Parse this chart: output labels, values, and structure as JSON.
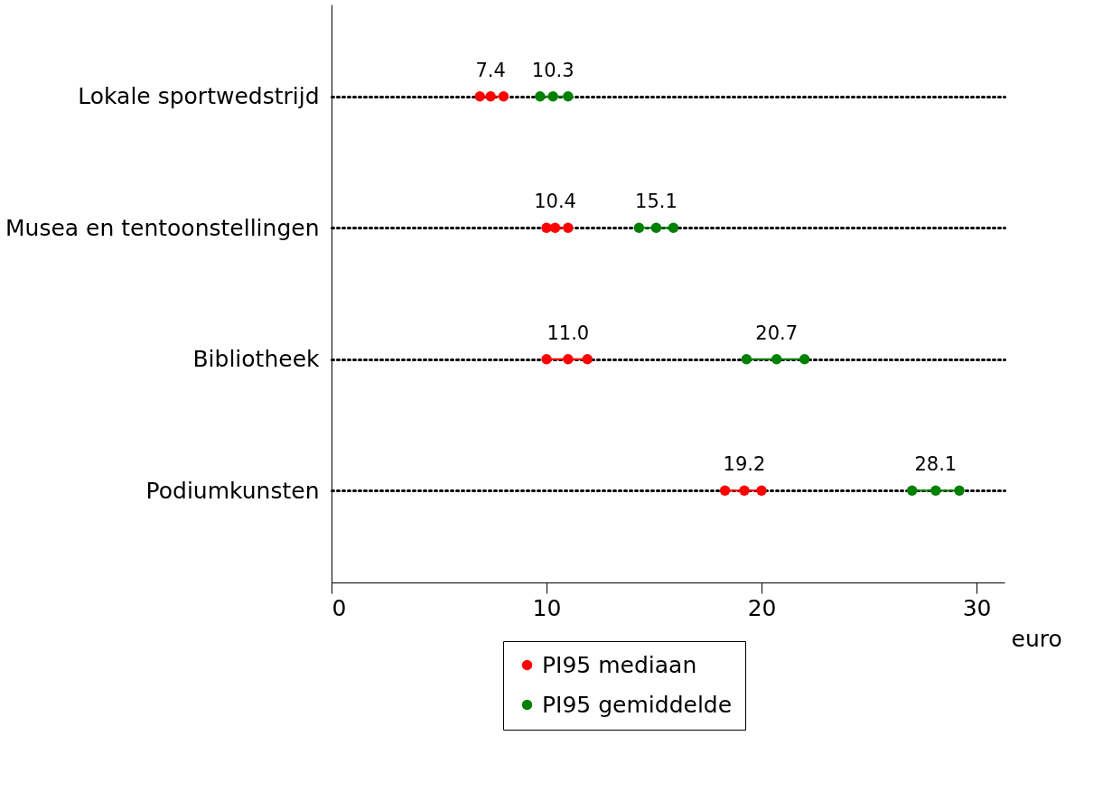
{
  "chart_data": {
    "type": "scatter",
    "orientation": "horizontal",
    "xlabel": "euro",
    "categories": [
      "Lokale sportwedstrijd",
      "Musea en tentoonstellingen",
      "Bibliotheek",
      "Podiumkunsten"
    ],
    "series": [
      {
        "name": "PI95 mediaan",
        "color": "#ff0000",
        "values": [
          7.4,
          10.4,
          11.0,
          19.2
        ],
        "value_labels": [
          "7.4",
          "10.4",
          "11.0",
          "19.2"
        ]
      },
      {
        "name": "PI95 gemiddelde",
        "color": "#008000",
        "values": [
          10.3,
          15.1,
          20.7,
          28.1
        ],
        "value_labels": [
          "10.3",
          "15.1",
          "20.7",
          "28.1"
        ]
      },
      {
        "color": "#ff0000",
        "values": [
          6.9,
          10.0,
          10.0,
          18.3
        ]
      },
      {
        "color": "#ff0000",
        "values": [
          8.0,
          11.0,
          11.9,
          20.0
        ]
      },
      {
        "color": "#008000",
        "values": [
          9.7,
          14.3,
          19.3,
          27.0
        ]
      },
      {
        "color": "#008000",
        "values": [
          11.0,
          15.9,
          22.0,
          29.2
        ]
      }
    ],
    "xlim": [
      0,
      31.3
    ],
    "xticks": [
      0,
      10,
      20,
      30
    ],
    "grid": "y",
    "line_style": "dotted",
    "marker": "circle",
    "legend": "bottom"
  }
}
